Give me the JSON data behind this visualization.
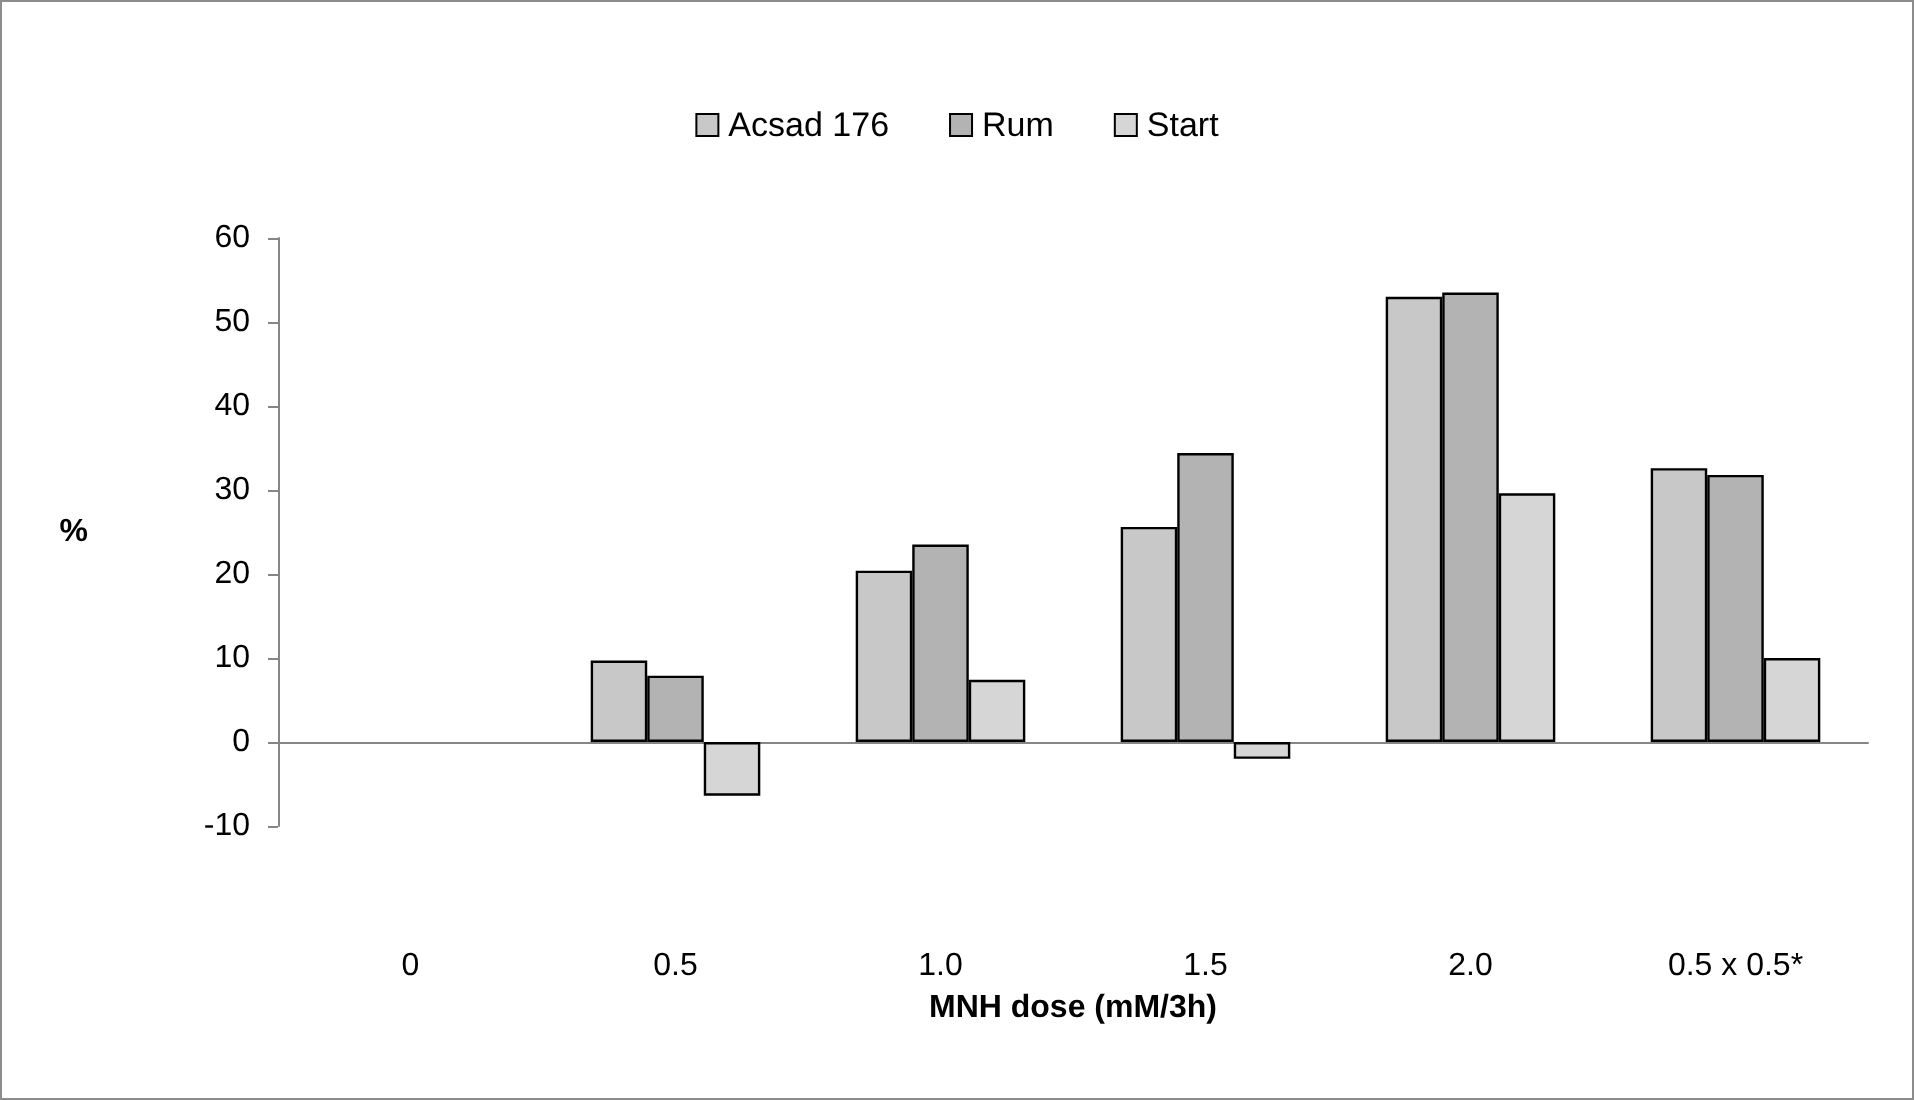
{
  "chart_data": {
    "type": "bar",
    "xlabel": "MNH dose (mM/3h)",
    "ylabel": "%",
    "categories": [
      "0",
      "0.5",
      "1.0",
      "1.5",
      "2.0",
      "0.5 x 0.5*"
    ],
    "series": [
      {
        "name": "Acsad 176",
        "color": "#c8c8c8",
        "values": [
          null,
          9.7,
          20.4,
          25.6,
          53.0,
          32.6
        ]
      },
      {
        "name": "Rum",
        "color": "#b3b3b3",
        "values": [
          null,
          7.9,
          23.5,
          34.4,
          53.5,
          31.8
        ]
      },
      {
        "name": "Start",
        "color": "#d6d6d6",
        "values": [
          null,
          -6.4,
          7.4,
          -2.0,
          29.6,
          10.0
        ]
      }
    ],
    "ylim": [
      -10,
      60
    ],
    "yticks": [
      -10,
      0,
      10,
      20,
      30,
      40,
      50,
      60
    ],
    "legend": "top"
  }
}
